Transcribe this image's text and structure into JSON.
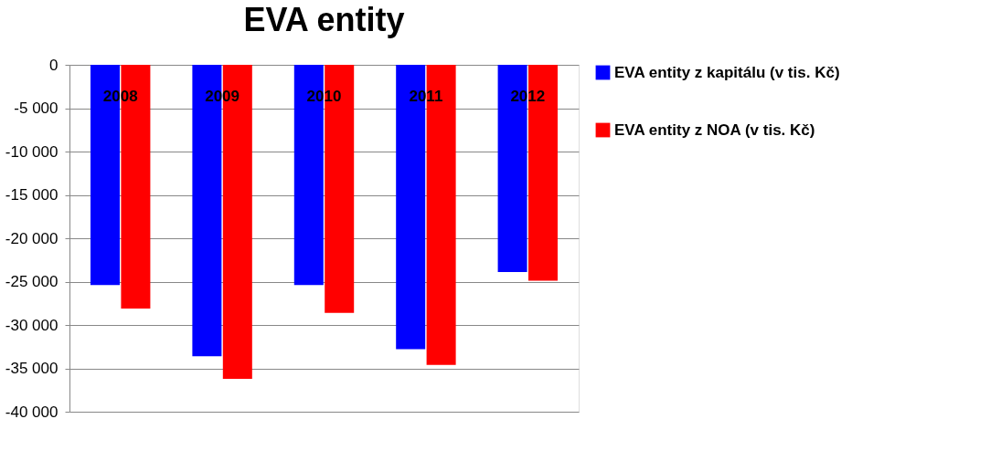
{
  "chart_data": {
    "type": "bar",
    "title": "EVA entity",
    "categories": [
      "2008",
      "2009",
      "2010",
      "2011",
      "2012"
    ],
    "series": [
      {
        "name": "EVA entity z kapitálu (v tis. Kč)",
        "color": "#0000ff",
        "values": [
          -25400,
          -33600,
          -25400,
          -32800,
          -23900
        ]
      },
      {
        "name": "EVA entity z NOA (v tis. Kč)",
        "color": "#ff0000",
        "values": [
          -28100,
          -36200,
          -28600,
          -34600,
          -24900
        ]
      }
    ],
    "ylim": [
      -40000,
      0
    ],
    "yticks": [
      {
        "value": 0,
        "label": "0"
      },
      {
        "value": -5000,
        "label": "-5 000"
      },
      {
        "value": -10000,
        "label": "-10 000"
      },
      {
        "value": -15000,
        "label": "-15 000"
      },
      {
        "value": -20000,
        "label": "-20 000"
      },
      {
        "value": -25000,
        "label": "-25 000"
      },
      {
        "value": -30000,
        "label": "-30 000"
      },
      {
        "value": -35000,
        "label": "-35 000"
      },
      {
        "value": -40000,
        "label": "-40 000"
      }
    ],
    "grid": "y",
    "legend": "right"
  }
}
